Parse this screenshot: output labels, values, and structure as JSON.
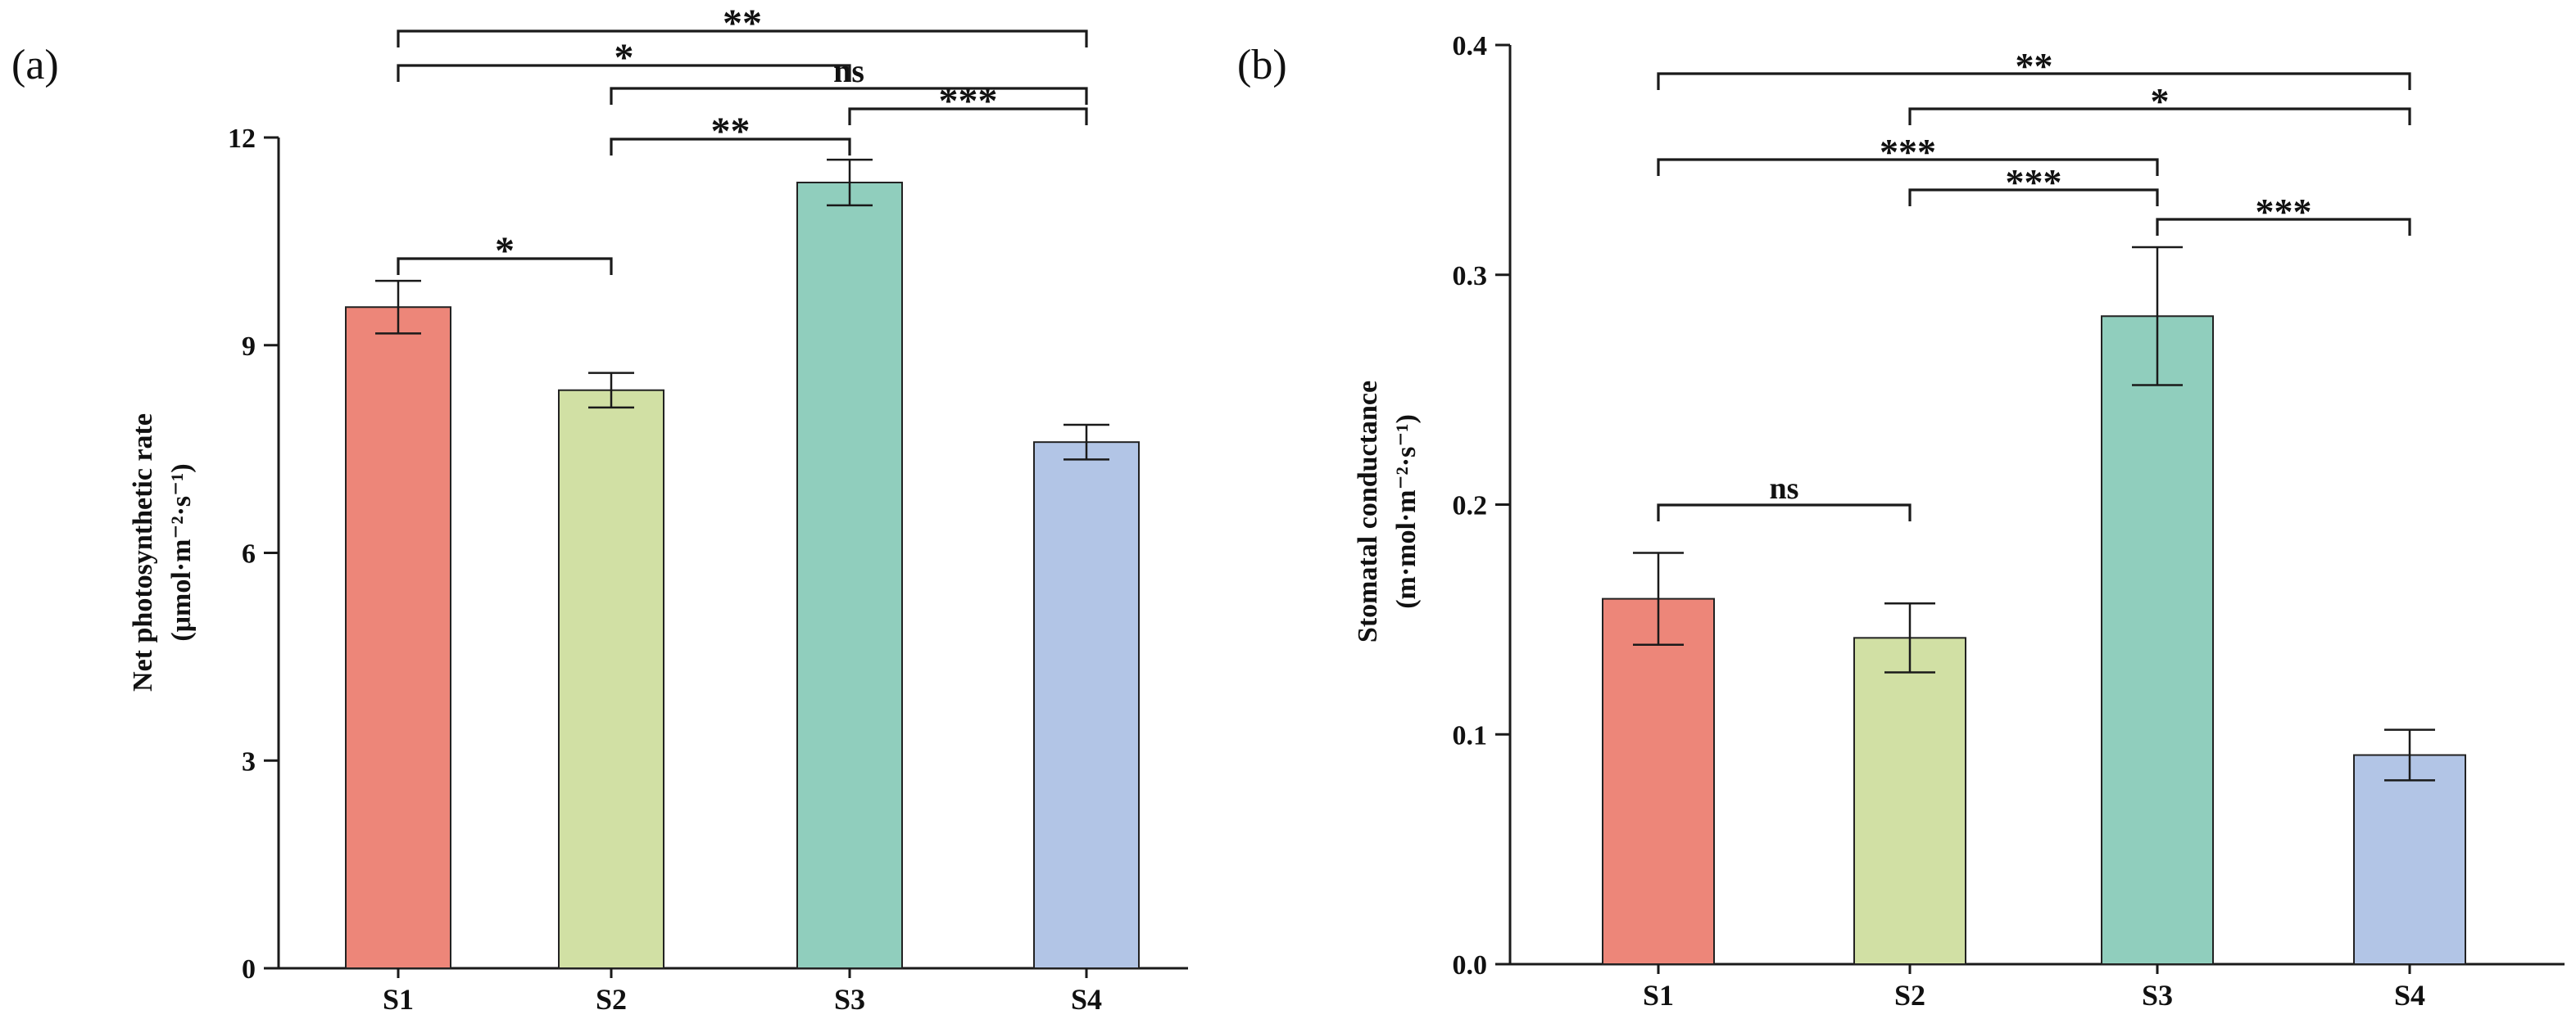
{
  "chart_data": [
    {
      "type": "bar",
      "panel_label": "(a)",
      "categories": [
        "S1",
        "S2",
        "S3",
        "S4"
      ],
      "values": [
        9.55,
        8.35,
        11.35,
        7.6
      ],
      "errors": [
        0.38,
        0.25,
        0.33,
        0.25
      ],
      "colors": [
        "#ed8679",
        "#d1e0a4",
        "#90cebd",
        "#b2c5e6"
      ],
      "title": "",
      "xlabel": "",
      "ylabel_line1": "Net photosynthetic rate",
      "ylabel_line2": "(μmol·m⁻²·s⁻¹)",
      "ylim": [
        0,
        12
      ],
      "yticks": [
        0,
        3,
        6,
        9,
        12
      ],
      "ytick_labels": [
        "0",
        "3",
        "6",
        "9",
        "12"
      ],
      "grid": false,
      "significance": [
        {
          "from": "S1",
          "to": "S2",
          "label": "*"
        },
        {
          "from": "S2",
          "to": "S3",
          "label": "**"
        },
        {
          "from": "S3",
          "to": "S4",
          "label": "***"
        },
        {
          "from": "S2",
          "to": "S4",
          "label": "ns"
        },
        {
          "from": "S1",
          "to": "S3",
          "label": "*"
        },
        {
          "from": "S1",
          "to": "S4",
          "label": "**"
        }
      ]
    },
    {
      "type": "bar",
      "panel_label": "(b)",
      "categories": [
        "S1",
        "S2",
        "S3",
        "S4"
      ],
      "values": [
        0.159,
        0.142,
        0.282,
        0.091
      ],
      "errors": [
        0.02,
        0.015,
        0.03,
        0.011
      ],
      "colors": [
        "#ed8679",
        "#d1e0a4",
        "#90cebd",
        "#b2c5e6"
      ],
      "title": "",
      "xlabel": "",
      "ylabel_line1": "Stomatal conductance",
      "ylabel_line2": "(m·mol·m⁻²·s⁻¹)",
      "ylim": [
        0,
        0.4
      ],
      "yticks": [
        0,
        0.1,
        0.2,
        0.3,
        0.4
      ],
      "ytick_labels": [
        "0.0",
        "0.1",
        "0.2",
        "0.3",
        "0.4"
      ],
      "grid": false,
      "significance": [
        {
          "from": "S1",
          "to": "S2",
          "label": "ns"
        },
        {
          "from": "S3",
          "to": "S4",
          "label": "***"
        },
        {
          "from": "S2",
          "to": "S3",
          "label": "***"
        },
        {
          "from": "S1",
          "to": "S3",
          "label": "***"
        },
        {
          "from": "S2",
          "to": "S4",
          "label": "*"
        },
        {
          "from": "S1",
          "to": "S4",
          "label": "**"
        }
      ]
    }
  ]
}
